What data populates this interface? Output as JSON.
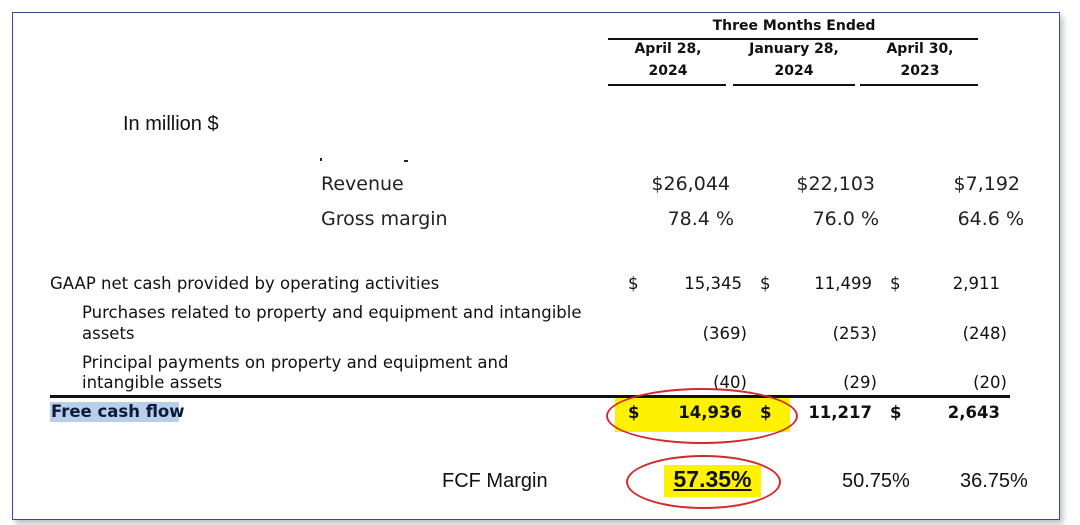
{
  "header": {
    "group": "Three Months Ended",
    "columns": [
      {
        "line1": "April 28,",
        "line2": "2024"
      },
      {
        "line1": "January 28,",
        "line2": "2024"
      },
      {
        "line1": "April 30,",
        "line2": "2023"
      }
    ]
  },
  "unit_note": "In million $",
  "metrics": [
    {
      "label": "Revenue",
      "values": [
        "$26,044",
        "$22,103",
        "$7,192"
      ]
    },
    {
      "label": "Gross margin",
      "values": [
        "78.4 %",
        "76.0 %",
        "64.6 %"
      ]
    }
  ],
  "cashflow": {
    "operating": {
      "label": "GAAP net cash provided by operating activities",
      "currency": "$",
      "values": [
        "15,345",
        "11,499",
        "2,911"
      ]
    },
    "purchases": {
      "label_line1": "Purchases related to property and equipment and intangible",
      "label_line2": "assets",
      "values": [
        "(369)",
        "(253)",
        "(248)"
      ]
    },
    "principal": {
      "label_line1": "Principal payments on property and equipment and",
      "label_line2": "intangible assets",
      "values": [
        "(40)",
        "(29)",
        "(20)"
      ]
    },
    "fcf": {
      "label": "Free cash flow",
      "currency": "$",
      "values": [
        "14,936",
        "11,217",
        "2,643"
      ]
    }
  },
  "fcf_margin": {
    "label": "FCF Margin",
    "values": [
      "57.35%",
      "50.75%",
      "36.75%"
    ]
  },
  "colors": {
    "highlight": "#fff200",
    "circle": "#d12a2a",
    "label_highlight": "#b9cfe9",
    "frame": "#3b4aa0"
  }
}
